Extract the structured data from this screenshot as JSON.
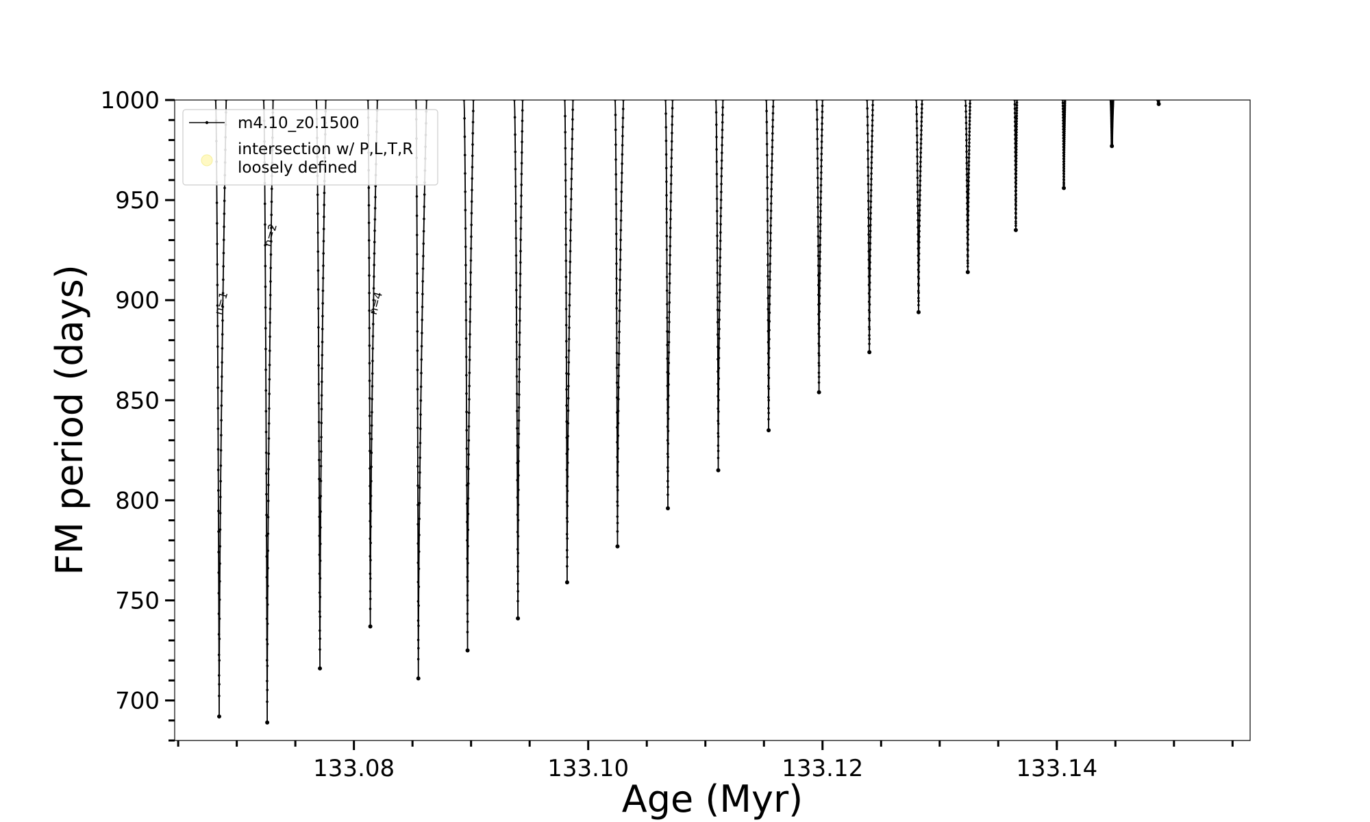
{
  "chart_data": {
    "type": "line",
    "title": "",
    "xlabel": "Age (Myr)",
    "ylabel": "FM period (days)",
    "xlim": [
      133.0647,
      133.1565
    ],
    "ylim": [
      680,
      1000
    ],
    "x_ticks": [
      133.08,
      133.1,
      133.12,
      133.14
    ],
    "x_tick_labels": [
      "133.08",
      "133.10",
      "133.12",
      "133.14"
    ],
    "y_ticks": [
      700,
      750,
      800,
      850,
      900,
      950,
      1000
    ],
    "y_tick_labels": [
      "700",
      "750",
      "800",
      "850",
      "900",
      "950",
      "1000"
    ],
    "grid": false,
    "legend": {
      "position": "upper-left",
      "entries": [
        {
          "label": "m4.10_z0.1500",
          "marker": "line-dot",
          "color": "#000000"
        },
        {
          "label": "intersection w/ P,L,T,R\nloosely defined",
          "marker": "circle",
          "color": "#fff9c4"
        }
      ]
    },
    "annotations": [
      {
        "text": "n=1",
        "x": 133.0685,
        "y": 898
      },
      {
        "text": "n=2",
        "x": 133.0727,
        "y": 932
      },
      {
        "text": "n=4",
        "x": 133.0817,
        "y": 898
      }
    ],
    "series": [
      {
        "name": "m4.10_z0.1500",
        "color": "#000000",
        "loops": [
          {
            "x_start": 133.0682,
            "x_min": 133.0685,
            "p_min": 692,
            "x_end": 133.0691
          },
          {
            "x_start": 133.0723,
            "x_min": 133.0726,
            "p_min": 689,
            "x_end": 133.0731
          },
          {
            "x_start": 133.0768,
            "x_min": 133.0771,
            "p_min": 716,
            "x_end": 133.0776
          },
          {
            "x_start": 133.0812,
            "x_min": 133.0814,
            "p_min": 737,
            "x_end": 133.082
          },
          {
            "x_start": 133.0853,
            "x_min": 133.0855,
            "p_min": 711,
            "x_end": 133.0862
          },
          {
            "x_start": 133.0894,
            "x_min": 133.0897,
            "p_min": 725,
            "x_end": 133.0902
          },
          {
            "x_start": 133.0937,
            "x_min": 133.094,
            "p_min": 741,
            "x_end": 133.0944
          },
          {
            "x_start": 133.098,
            "x_min": 133.0982,
            "p_min": 759,
            "x_end": 133.0987
          },
          {
            "x_start": 133.1023,
            "x_min": 133.1025,
            "p_min": 777,
            "x_end": 133.103
          },
          {
            "x_start": 133.1066,
            "x_min": 133.1068,
            "p_min": 796,
            "x_end": 133.1072
          },
          {
            "x_start": 133.1109,
            "x_min": 133.1111,
            "p_min": 815,
            "x_end": 133.1115
          },
          {
            "x_start": 133.1152,
            "x_min": 133.1154,
            "p_min": 835,
            "x_end": 133.1158
          },
          {
            "x_start": 133.1195,
            "x_min": 133.1197,
            "p_min": 854,
            "x_end": 133.12
          },
          {
            "x_start": 133.1238,
            "x_min": 133.124,
            "p_min": 874,
            "x_end": 133.1243
          },
          {
            "x_start": 133.128,
            "x_min": 133.1282,
            "p_min": 894,
            "x_end": 133.1285
          },
          {
            "x_start": 133.1322,
            "x_min": 133.1324,
            "p_min": 914,
            "x_end": 133.1326
          },
          {
            "x_start": 133.1364,
            "x_min": 133.1365,
            "p_min": 935,
            "x_end": 133.1366
          },
          {
            "x_start": 133.1405,
            "x_min": 133.1406,
            "p_min": 956,
            "x_end": 133.1407
          },
          {
            "x_start": 133.1446,
            "x_min": 133.1447,
            "p_min": 977,
            "x_end": 133.1448
          },
          {
            "x_start": 133.1486,
            "x_min": 133.1487,
            "p_min": 998,
            "x_end": 133.1487
          }
        ]
      }
    ]
  }
}
